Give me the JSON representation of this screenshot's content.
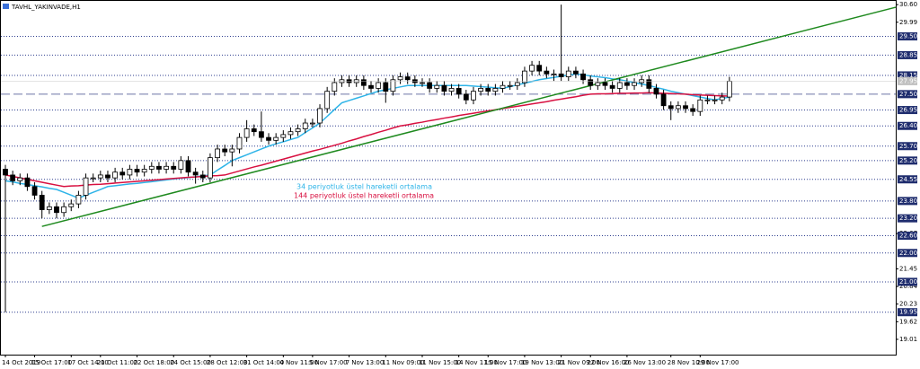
{
  "chart_data": {
    "type": "candlestick",
    "title": "TAVHL_YAKINVADE,H1",
    "categories": [
      "14 Oct 2019",
      null,
      null,
      null,
      "15 Oct 17:00",
      null,
      null,
      null,
      null,
      "17 Oct 14:00",
      null,
      null,
      null,
      "21 Oct 11:00",
      null,
      null,
      null,
      null,
      "22 Oct 18:00",
      null,
      null,
      null,
      null,
      "24 Oct 15:00",
      null,
      null,
      null,
      null,
      "28 Oct 12:00",
      null,
      null,
      null,
      null,
      "31 Oct 14:00",
      null,
      null,
      null,
      null,
      "4 Nov 11:00",
      null,
      null,
      null,
      "5 Nov 17:00",
      null,
      null,
      null,
      null,
      "7 Nov 13:00",
      null,
      null,
      null,
      null,
      "11 Nov 09:00",
      null,
      null,
      null,
      null,
      "11 Nov 15:00",
      null,
      null,
      null,
      null,
      "14 Nov 11:00",
      null,
      null,
      null,
      "15 Nov 17:00",
      null,
      null,
      null,
      null,
      "19 Nov 13:00",
      null,
      null,
      null,
      null,
      "21 Nov 09:00",
      null,
      null,
      null,
      "22 Nov 16:00",
      null,
      null,
      null,
      null,
      "26 Nov 13:00",
      null,
      null,
      null,
      null,
      null,
      "28 Nov 10:00",
      null,
      null,
      null,
      "29 Nov 17:00",
      null,
      null,
      null,
      null
    ],
    "open": [
      24.9,
      24.7,
      24.5,
      24.6,
      24.3,
      24.0,
      23.5,
      23.6,
      23.4,
      23.6,
      23.7,
      24.0,
      24.6,
      24.6,
      24.7,
      24.6,
      24.8,
      24.7,
      24.9,
      24.8,
      24.9,
      25.0,
      24.9,
      25.0,
      24.9,
      25.2,
      24.8,
      24.7,
      24.6,
      25.3,
      25.6,
      25.5,
      25.6,
      26.0,
      26.3,
      26.2,
      26.0,
      25.9,
      26.0,
      26.1,
      26.2,
      26.3,
      26.5,
      26.5,
      27.0,
      27.6,
      27.9,
      28.0,
      27.9,
      28.0,
      27.8,
      27.7,
      27.9,
      27.6,
      28.0,
      28.1,
      28.0,
      27.9,
      27.9,
      27.7,
      27.8,
      27.6,
      27.7,
      27.5,
      27.3,
      27.6,
      27.7,
      27.6,
      27.7,
      27.8,
      27.8,
      27.9,
      28.3,
      28.5,
      28.3,
      28.2,
      28.2,
      28.1,
      28.3,
      28.2,
      28.0,
      27.8,
      27.9,
      27.8,
      27.7,
      27.9,
      27.8,
      27.9,
      28.0,
      27.7,
      27.5,
      27.1,
      27.0,
      27.1,
      27.0,
      26.9,
      27.3,
      27.3,
      27.3,
      27.4
    ],
    "high": [
      25.05,
      24.85,
      24.75,
      24.75,
      24.45,
      24.15,
      23.75,
      23.75,
      23.75,
      23.85,
      24.15,
      24.75,
      24.75,
      24.85,
      24.85,
      24.95,
      24.95,
      25.05,
      25.05,
      25.05,
      25.15,
      25.15,
      25.15,
      25.15,
      25.35,
      25.35,
      24.95,
      24.85,
      25.45,
      25.75,
      25.75,
      25.75,
      26.15,
      26.6,
      26.45,
      26.9,
      26.15,
      26.15,
      26.25,
      26.35,
      26.45,
      26.65,
      26.65,
      27.15,
      27.75,
      28.05,
      28.15,
      28.15,
      28.15,
      28.15,
      27.95,
      28.05,
      28.05,
      28.15,
      28.25,
      28.25,
      28.15,
      28.05,
      28.05,
      27.95,
      27.95,
      27.85,
      27.85,
      27.65,
      27.75,
      27.85,
      27.85,
      27.85,
      27.95,
      27.95,
      28.05,
      28.45,
      28.65,
      28.65,
      28.45,
      28.35,
      30.6,
      28.45,
      28.45,
      28.35,
      28.15,
      28.05,
      28.05,
      27.95,
      28.05,
      28.05,
      28.05,
      28.15,
      28.15,
      27.85,
      27.65,
      27.25,
      27.25,
      27.25,
      27.15,
      27.45,
      27.45,
      27.45,
      27.55,
      28.1
    ],
    "low": [
      19.95,
      24.35,
      24.35,
      24.15,
      23.85,
      23.2,
      23.35,
      23.2,
      23.25,
      23.45,
      23.55,
      23.85,
      24.45,
      24.45,
      24.45,
      24.45,
      24.55,
      24.55,
      24.65,
      24.65,
      24.75,
      24.75,
      24.75,
      24.75,
      24.75,
      24.65,
      24.4,
      24.45,
      24.45,
      25.15,
      25.35,
      25.0,
      25.45,
      25.85,
      26.05,
      25.85,
      25.75,
      25.75,
      25.85,
      25.95,
      26.05,
      26.15,
      26.35,
      26.35,
      26.85,
      27.45,
      27.75,
      27.75,
      27.75,
      27.65,
      27.55,
      27.55,
      27.2,
      27.45,
      27.85,
      27.85,
      27.75,
      27.75,
      27.55,
      27.55,
      27.45,
      27.45,
      27.35,
      27.15,
      27.15,
      27.45,
      27.45,
      27.45,
      27.55,
      27.65,
      27.65,
      27.75,
      28.15,
      28.15,
      28.05,
      27.95,
      27.95,
      27.95,
      28.05,
      27.85,
      27.65,
      27.65,
      27.65,
      27.55,
      27.55,
      27.65,
      27.65,
      27.75,
      27.55,
      27.35,
      26.95,
      26.6,
      26.85,
      26.85,
      26.75,
      26.75,
      27.15,
      27.15,
      27.15,
      27.25
    ],
    "close": [
      24.7,
      24.5,
      24.6,
      24.3,
      24.0,
      23.5,
      23.6,
      23.4,
      23.6,
      23.7,
      24.0,
      24.6,
      24.6,
      24.7,
      24.6,
      24.8,
      24.7,
      24.9,
      24.8,
      24.9,
      25.0,
      24.9,
      25.0,
      24.9,
      25.2,
      24.8,
      24.7,
      24.6,
      25.3,
      25.6,
      25.5,
      25.6,
      26.0,
      26.3,
      26.2,
      26.0,
      25.9,
      26.0,
      26.1,
      26.2,
      26.3,
      26.5,
      26.5,
      27.0,
      27.6,
      27.9,
      28.0,
      27.9,
      28.0,
      27.8,
      27.7,
      27.9,
      27.6,
      28.0,
      28.1,
      28.0,
      27.9,
      27.9,
      27.7,
      27.8,
      27.6,
      27.7,
      27.5,
      27.3,
      27.6,
      27.7,
      27.6,
      27.7,
      27.8,
      27.8,
      27.9,
      28.3,
      28.5,
      28.3,
      28.2,
      28.2,
      28.1,
      28.3,
      28.2,
      28.0,
      27.8,
      27.9,
      27.8,
      27.7,
      27.9,
      27.8,
      27.9,
      28.0,
      27.7,
      27.5,
      27.1,
      27.0,
      27.1,
      27.0,
      26.9,
      27.3,
      27.3,
      27.3,
      27.4,
      27.95
    ],
    "series": [
      {
        "name": "34 periyotluk üstel hareketli ortalama",
        "color": "#2eb4e8",
        "values": [
          24.5,
          24.46,
          24.41,
          24.37,
          24.33,
          24.29,
          24.24,
          24.2,
          24.1,
          24.0,
          23.9,
          24.0,
          24.1,
          24.2,
          24.3,
          24.33,
          24.36,
          24.39,
          24.41,
          24.44,
          24.47,
          24.5,
          24.53,
          24.56,
          24.59,
          24.61,
          24.64,
          24.67,
          24.7,
          24.87,
          25.03,
          25.2,
          25.3,
          25.4,
          25.5,
          25.6,
          25.7,
          25.78,
          25.85,
          25.93,
          26.0,
          26.17,
          26.33,
          26.5,
          26.73,
          26.97,
          27.2,
          27.28,
          27.36,
          27.44,
          27.52,
          27.6,
          27.65,
          27.7,
          27.75,
          27.8,
          27.8,
          27.8,
          27.8,
          27.8,
          27.8,
          27.8,
          27.8,
          27.8,
          27.78,
          27.76,
          27.74,
          27.72,
          27.7,
          27.76,
          27.82,
          27.88,
          27.94,
          28.0,
          28.04,
          28.08,
          28.12,
          28.16,
          28.2,
          28.17,
          28.13,
          28.1,
          28.07,
          28.03,
          28.0,
          27.95,
          27.9,
          27.85,
          27.8,
          27.73,
          27.67,
          27.6,
          27.55,
          27.5,
          27.45,
          27.4,
          27.35,
          27.3,
          27.35,
          27.4
        ]
      },
      {
        "name": "144 periyotluk üstel hareketli ortalama",
        "color": "#d81040",
        "values": [
          24.7,
          24.65,
          24.6,
          24.55,
          24.5,
          24.45,
          24.4,
          24.35,
          24.3,
          24.32,
          24.33,
          24.35,
          24.37,
          24.38,
          24.4,
          24.42,
          24.44,
          24.46,
          24.48,
          24.5,
          24.52,
          24.54,
          24.56,
          24.58,
          24.6,
          24.62,
          24.63,
          24.65,
          24.67,
          24.68,
          24.7,
          24.77,
          24.84,
          24.91,
          24.98,
          25.04,
          25.11,
          25.18,
          25.25,
          25.32,
          25.39,
          25.46,
          25.53,
          25.59,
          25.66,
          25.73,
          25.8,
          25.88,
          25.95,
          26.03,
          26.1,
          26.18,
          26.25,
          26.33,
          26.4,
          26.44,
          26.49,
          26.53,
          26.58,
          26.62,
          26.67,
          26.71,
          26.76,
          26.8,
          26.84,
          26.88,
          26.92,
          26.96,
          27.0,
          27.04,
          27.08,
          27.12,
          27.16,
          27.2,
          27.24,
          27.29,
          27.33,
          27.37,
          27.41,
          27.46,
          27.5,
          27.51,
          27.51,
          27.52,
          27.53,
          27.53,
          27.54,
          27.54,
          27.55,
          27.54,
          27.53,
          27.52,
          27.51,
          27.5,
          27.48,
          27.47,
          27.46,
          27.45,
          27.44,
          27.43
        ]
      }
    ],
    "ylim": [
      18.48,
      30.76
    ],
    "yticks": [
      {
        "value": 30.6,
        "label": "30.60"
      },
      29.99,
      22.67,
      21.45,
      20.84,
      20.23,
      19.62,
      19.01
    ],
    "levels": [
      {
        "value": 29.5,
        "label": "29.50"
      },
      {
        "value": 28.85,
        "label": "28.85"
      },
      {
        "value": 28.15,
        "label": "28.15"
      },
      {
        "value": 27.5,
        "label": "27.50",
        "style": "dashed"
      },
      {
        "value": 26.95,
        "label": "26.95"
      },
      {
        "value": 26.4,
        "label": "26.40"
      },
      {
        "value": 25.7,
        "label": "25.70"
      },
      {
        "value": 25.2,
        "label": "25.20"
      },
      24.55,
      {
        "value": 23.8,
        "label": "23.80"
      },
      {
        "value": 23.2,
        "label": "23.20"
      },
      {
        "value": 22.6,
        "label": "22.60"
      },
      {
        "value": 22.0,
        "label": "22.00"
      },
      {
        "value": 21.0,
        "label": "21.00"
      },
      19.95
    ],
    "current_price": 27.95,
    "trendline": {
      "color": "#1f8a1f",
      "from": [
        5,
        22.92
      ],
      "to": [
        122,
        30.51
      ]
    }
  }
}
